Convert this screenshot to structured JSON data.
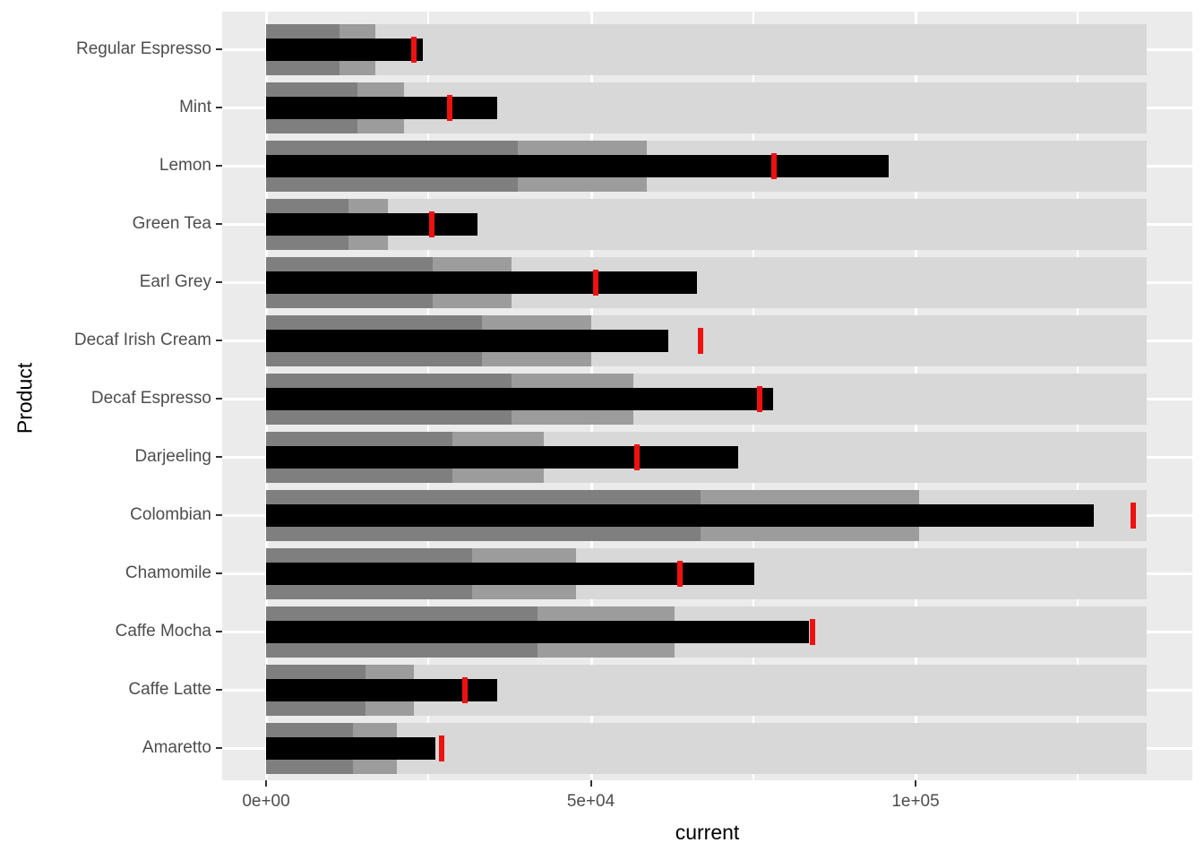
{
  "chart_data": {
    "type": "bar",
    "subtype": "bullet",
    "orientation": "horizontal",
    "title": "",
    "xlabel": "current",
    "ylabel": "Product",
    "legend": "none",
    "grid": true,
    "x_axis": {
      "tick_labels": [
        "0e+00",
        "5e+04",
        "1e+05"
      ],
      "tick_values": [
        0,
        50000,
        100000
      ],
      "minor_tick_values": [
        25000,
        75000,
        125000
      ],
      "xlim": [
        -6900,
        142500
      ]
    },
    "categories": [
      "Regular Espresso",
      "Mint",
      "Lemon",
      "Green Tea",
      "Earl Grey",
      "Decaf Irish Cream",
      "Decaf Espresso",
      "Darjeeling",
      "Colombian",
      "Chamomile",
      "Caffe Mocha",
      "Caffe Latte",
      "Amaretto"
    ],
    "series_legend": [
      {
        "name": "range_low",
        "description": "dark gray inner range"
      },
      {
        "name": "range_mid",
        "description": "medium gray middle range"
      },
      {
        "name": "range_max",
        "description": "light gray full range"
      },
      {
        "name": "current",
        "description": "black bar, current value"
      },
      {
        "name": "target",
        "description": "red tick, target value"
      }
    ],
    "rows": [
      {
        "label": "Regular Espresso",
        "range_low": 11300,
        "range_mid": 16800,
        "range_max": 135600,
        "current": 24100,
        "target": 22800
      },
      {
        "label": "Mint",
        "range_low": 14100,
        "range_mid": 21200,
        "range_max": 135600,
        "current": 35600,
        "target": 28300
      },
      {
        "label": "Lemon",
        "range_low": 38800,
        "range_mid": 58600,
        "range_max": 135600,
        "current": 95900,
        "target": 78200
      },
      {
        "label": "Green Tea",
        "range_low": 12700,
        "range_mid": 18800,
        "range_max": 135600,
        "current": 32600,
        "target": 25500
      },
      {
        "label": "Earl Grey",
        "range_low": 25700,
        "range_mid": 37800,
        "range_max": 135600,
        "current": 66300,
        "target": 50800
      },
      {
        "label": "Decaf Irish Cream",
        "range_low": 33200,
        "range_mid": 50100,
        "range_max": 135600,
        "current": 61900,
        "target": 66900
      },
      {
        "label": "Decaf Espresso",
        "range_low": 37800,
        "range_mid": 56600,
        "range_max": 135600,
        "current": 78100,
        "target": 76000
      },
      {
        "label": "Darjeeling",
        "range_low": 28700,
        "range_mid": 42800,
        "range_max": 135600,
        "current": 72700,
        "target": 57100
      },
      {
        "label": "Colombian",
        "range_low": 66900,
        "range_mid": 100500,
        "range_max": 135600,
        "current": 127400,
        "target": 133500
      },
      {
        "label": "Chamomile",
        "range_low": 31700,
        "range_mid": 47700,
        "range_max": 135600,
        "current": 75200,
        "target": 63700
      },
      {
        "label": "Caffe Mocha",
        "range_low": 41800,
        "range_mid": 62900,
        "range_max": 135600,
        "current": 83600,
        "target": 84100
      },
      {
        "label": "Caffe Latte",
        "range_low": 15300,
        "range_mid": 22800,
        "range_max": 135600,
        "current": 35600,
        "target": 30600
      },
      {
        "label": "Amaretto",
        "range_low": 13400,
        "range_mid": 20100,
        "range_max": 135600,
        "current": 26100,
        "target": 27000
      }
    ],
    "colors": {
      "range_low": "#7f7f7f",
      "range_mid": "#9c9c9c",
      "range_max": "#d8d8d8",
      "current": "#000000",
      "target": "#ee1111",
      "panel_background": "#ebebeb",
      "gridline": "#ffffff",
      "axis_text": "#4d4d4d",
      "axis_tick": "#333333"
    }
  }
}
